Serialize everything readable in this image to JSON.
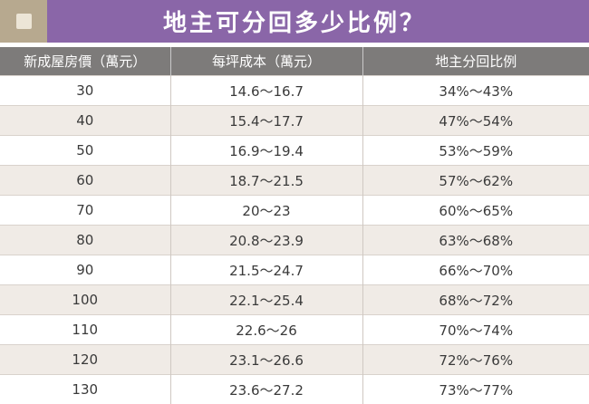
{
  "title": "地主可分回多少比例？",
  "colors": {
    "title_bar": "#8a66a8",
    "badge": "#b7a98f",
    "header": "#7d7b7a",
    "alt_row": "#f0ebe6"
  },
  "headers": [
    "新成屋房價（萬元）",
    "每坪成本（萬元）",
    "地主分回比例"
  ],
  "rows": [
    [
      "30",
      "14.6～16.7",
      "34%～43%"
    ],
    [
      "40",
      "15.4～17.7",
      "47%～54%"
    ],
    [
      "50",
      "16.9～19.4",
      "53%～59%"
    ],
    [
      "60",
      "18.7～21.5",
      "57%～62%"
    ],
    [
      "70",
      "20～23",
      "60%～65%"
    ],
    [
      "80",
      "20.8～23.9",
      "63%～68%"
    ],
    [
      "90",
      "21.5～24.7",
      "66%～70%"
    ],
    [
      "100",
      "22.1～25.4",
      "68%～72%"
    ],
    [
      "110",
      "22.6～26",
      "70%～74%"
    ],
    [
      "120",
      "23.1～26.6",
      "72%～76%"
    ],
    [
      "130",
      "23.6～27.2",
      "73%～77%"
    ]
  ]
}
